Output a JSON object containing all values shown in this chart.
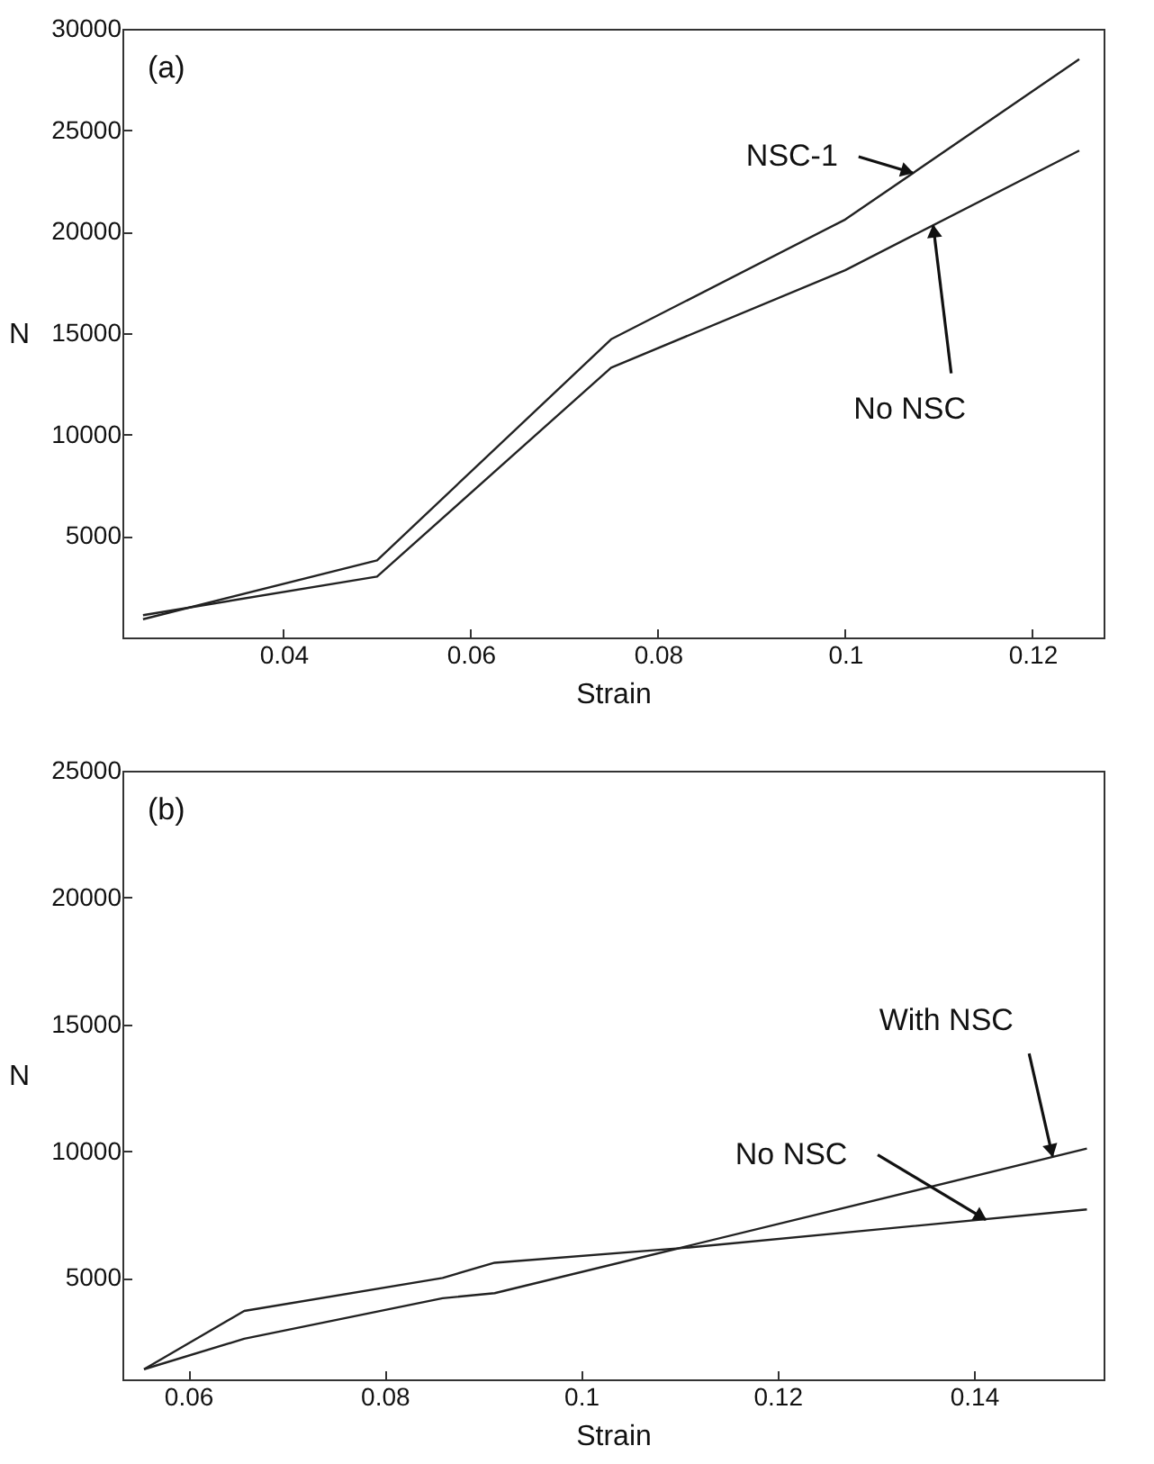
{
  "chart_data": [
    {
      "type": "line",
      "xlabel": "Strain",
      "ylabel": "N",
      "xlim": [
        0.0228,
        0.1276
      ],
      "ylim": [
        0,
        30000
      ],
      "xticks": [
        0.04,
        0.06,
        0.08,
        0.1,
        0.12
      ],
      "yticks": [
        5000,
        10000,
        15000,
        20000,
        25000,
        30000
      ],
      "grid": false,
      "series": [
        {
          "color": "#222222",
          "x": [
            0.025,
            0.05,
            0.075,
            0.1,
            0.125
          ],
          "values": [
            900,
            3800,
            14700,
            20600,
            28500
          ]
        },
        {
          "color": "#222222",
          "x": [
            0.025,
            0.05,
            0.075,
            0.1,
            0.125
          ],
          "values": [
            1100,
            3000,
            13300,
            18100,
            24000
          ]
        }
      ],
      "annotations": [
        "(a)",
        {
          "text": "NSC-1",
          "x": 0.1072,
          "y": 22900
        },
        {
          "text": "No NSC",
          "x": 0.1094,
          "y": 20300
        }
      ]
    },
    {
      "type": "line",
      "xlabel": "Strain",
      "ylabel": "N",
      "xlim": [
        0.0533,
        0.1532
      ],
      "ylim": [
        1000,
        25000
      ],
      "xticks": [
        0.06,
        0.08,
        0.1,
        0.12,
        0.14
      ],
      "yticks": [
        5000,
        10000,
        15000,
        20000,
        25000
      ],
      "grid": false,
      "series": [
        {
          "color": "#222222",
          "x": [
            0.0555,
            0.0657,
            0.0859,
            0.0912,
            0.1515
          ],
          "values": [
            1400,
            2600,
            4200,
            4400,
            10100
          ]
        },
        {
          "color": "#222222",
          "x": [
            0.0555,
            0.0657,
            0.0859,
            0.0912,
            0.111,
            0.1515
          ],
          "values": [
            1400,
            3700,
            5000,
            5600,
            6200,
            7700
          ]
        }
      ],
      "annotations": [
        "(b)",
        {
          "text": "With NSC",
          "x": 0.148,
          "y": 9800
        },
        {
          "text": "No NSC",
          "x": 0.1412,
          "y": 7300
        }
      ]
    }
  ]
}
